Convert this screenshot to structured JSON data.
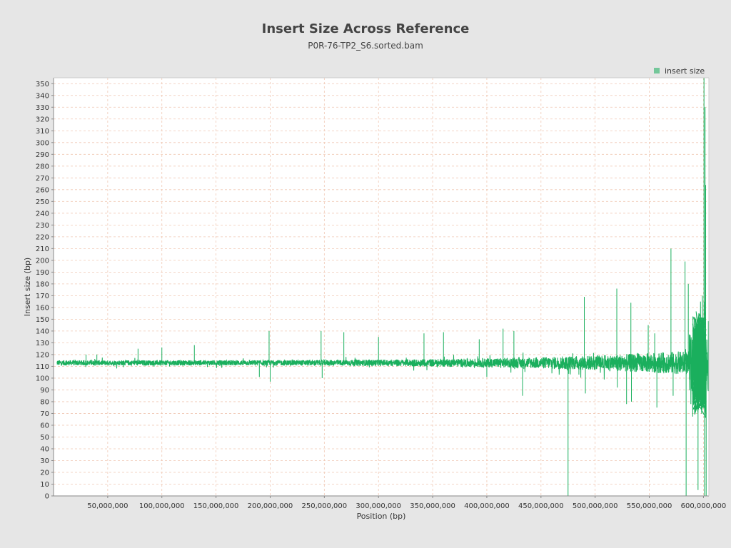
{
  "chart_data": {
    "type": "line",
    "title": "Insert Size Across Reference",
    "subtitle": "P0R-76-TP2_S6.sorted.bam",
    "xlabel": "Position (bp)",
    "ylabel": "Insert size (bp)",
    "xlim": [
      0,
      605000000
    ],
    "ylim": [
      0,
      355
    ],
    "x_ticks": [
      50000000,
      100000000,
      150000000,
      200000000,
      250000000,
      300000000,
      350000000,
      400000000,
      450000000,
      500000000,
      550000000,
      600000000
    ],
    "x_tick_labels": [
      "50,000,000",
      "100,000,000",
      "150,000,000",
      "200,000,000",
      "250,000,000",
      "300,000,000",
      "350,000,000",
      "400,000,000",
      "450,000,000",
      "500,000,000",
      "550,000,000",
      "600,000,000"
    ],
    "y_ticks": [
      0,
      10,
      20,
      30,
      40,
      50,
      60,
      70,
      80,
      90,
      100,
      110,
      120,
      130,
      140,
      150,
      160,
      170,
      180,
      190,
      200,
      210,
      220,
      230,
      240,
      250,
      260,
      270,
      280,
      290,
      300,
      310,
      320,
      330,
      340,
      350
    ],
    "grid": true,
    "legend_position": "top-right",
    "colors": {
      "series": "#1aaf5d",
      "legend_swatch": "#74c79a",
      "grid": "#f0c8b4",
      "plot_background": "#ffffff",
      "page_background": "#e6e6e6",
      "axis": "#888888",
      "text": "#333333"
    },
    "baseline": 113,
    "series": [
      {
        "name": "insert size",
        "spikes": [
          {
            "x": 30000000,
            "y": 120
          },
          {
            "x": 40000000,
            "y": 120
          },
          {
            "x": 78000000,
            "y": 125
          },
          {
            "x": 100000000,
            "y": 126
          },
          {
            "x": 130000000,
            "y": 128
          },
          {
            "x": 190000000,
            "y": 101
          },
          {
            "x": 199000000,
            "y": 140
          },
          {
            "x": 200000000,
            "y": 97
          },
          {
            "x": 247000000,
            "y": 140
          },
          {
            "x": 248000000,
            "y": 100
          },
          {
            "x": 268000000,
            "y": 139
          },
          {
            "x": 300000000,
            "y": 135
          },
          {
            "x": 342000000,
            "y": 138
          },
          {
            "x": 360000000,
            "y": 139
          },
          {
            "x": 393000000,
            "y": 133
          },
          {
            "x": 400000000,
            "y": 101
          },
          {
            "x": 415000000,
            "y": 142
          },
          {
            "x": 425000000,
            "y": 140
          },
          {
            "x": 433000000,
            "y": 85
          },
          {
            "x": 475000000,
            "y": 0
          },
          {
            "x": 485000000,
            "y": 103
          },
          {
            "x": 490000000,
            "y": 169
          },
          {
            "x": 491000000,
            "y": 87
          },
          {
            "x": 520000000,
            "y": 176
          },
          {
            "x": 520500000,
            "y": 92
          },
          {
            "x": 529000000,
            "y": 78
          },
          {
            "x": 533000000,
            "y": 164
          },
          {
            "x": 533500000,
            "y": 80
          },
          {
            "x": 549000000,
            "y": 145
          },
          {
            "x": 555000000,
            "y": 138
          },
          {
            "x": 557000000,
            "y": 75
          },
          {
            "x": 570000000,
            "y": 210
          },
          {
            "x": 572000000,
            "y": 85
          },
          {
            "x": 583000000,
            "y": 199
          },
          {
            "x": 584000000,
            "y": 0
          },
          {
            "x": 586000000,
            "y": 180
          },
          {
            "x": 595000000,
            "y": 5
          },
          {
            "x": 599000000,
            "y": 170
          },
          {
            "x": 600500000,
            "y": 355
          },
          {
            "x": 601000000,
            "y": 0
          },
          {
            "x": 601500000,
            "y": 330
          },
          {
            "x": 602000000,
            "y": 264
          },
          {
            "x": 602500000,
            "y": 0
          }
        ]
      }
    ]
  }
}
